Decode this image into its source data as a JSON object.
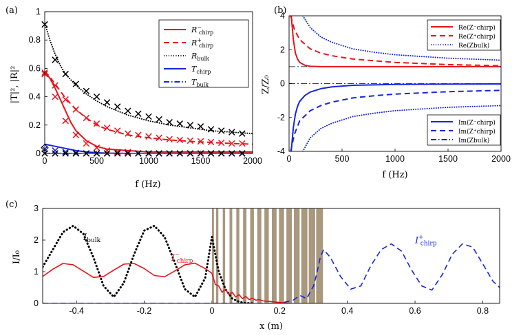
{
  "chart_data": [
    {
      "type": "line",
      "panel_label": "(a)",
      "xlabel": "f (Hz)",
      "ylabel": "|T|², |R|²",
      "xlim": [
        0,
        2000
      ],
      "ylim": [
        0,
        1
      ],
      "xticks": [
        "0",
        "500",
        "1000",
        "1500",
        "2000"
      ],
      "yticks": [
        "0",
        "0.2",
        "0.4",
        "0.6",
        "0.8",
        "1"
      ],
      "legend_position": "top-right",
      "series": [
        {
          "name": "R⁻chirp",
          "color": "#e8141b",
          "style": "solid",
          "x": [
            0,
            50,
            100,
            150,
            200,
            250,
            300,
            400,
            500,
            600,
            800,
            1000,
            1200,
            1400,
            1600,
            1800,
            2000
          ],
          "y": [
            0.58,
            0.53,
            0.46,
            0.38,
            0.3,
            0.22,
            0.16,
            0.09,
            0.05,
            0.03,
            0.02,
            0.01,
            0.01,
            0.01,
            0.01,
            0.01,
            0.01
          ]
        },
        {
          "name": "R⁺chirp",
          "color": "#e8141b",
          "style": "dashed",
          "x": [
            0,
            50,
            100,
            150,
            200,
            250,
            300,
            400,
            500,
            600,
            800,
            1000,
            1200,
            1400,
            1600,
            1800,
            2000
          ],
          "y": [
            0.58,
            0.54,
            0.49,
            0.44,
            0.39,
            0.35,
            0.31,
            0.25,
            0.2,
            0.17,
            0.13,
            0.11,
            0.095,
            0.085,
            0.077,
            0.07,
            0.065
          ]
        },
        {
          "name": "Rbulk",
          "color": "#000000",
          "style": "dotted",
          "x": [
            0,
            50,
            100,
            150,
            200,
            250,
            300,
            400,
            500,
            600,
            800,
            1000,
            1200,
            1400,
            1600,
            1800,
            2000
          ],
          "y": [
            0.92,
            0.8,
            0.7,
            0.62,
            0.56,
            0.52,
            0.48,
            0.42,
            0.37,
            0.33,
            0.27,
            0.23,
            0.2,
            0.18,
            0.16,
            0.15,
            0.14
          ]
        },
        {
          "name": "Tchirp",
          "color": "#1524e0",
          "style": "solid",
          "x": [
            0,
            100,
            200,
            300,
            400,
            500,
            600,
            800,
            1000,
            2000
          ],
          "y": [
            0.065,
            0.05,
            0.035,
            0.02,
            0.01,
            0.005,
            0.002,
            0.0,
            0.0,
            0.0
          ]
        },
        {
          "name": "Tbulk",
          "color": "#1524e0",
          "style": "dashdot",
          "x": [
            0,
            2000
          ],
          "y": [
            0.0,
            0.0
          ]
        }
      ],
      "markers": [
        {
          "series": "Rbulk",
          "symbol": "x",
          "color": "#000000",
          "x": [
            0,
            100,
            200,
            300,
            400,
            500,
            600,
            700,
            800,
            900,
            1000,
            1100,
            1200,
            1300,
            1400,
            1500,
            1600,
            1700,
            1800,
            1900
          ],
          "y": [
            0.91,
            0.66,
            0.56,
            0.49,
            0.44,
            0.4,
            0.36,
            0.33,
            0.3,
            0.28,
            0.26,
            0.24,
            0.22,
            0.21,
            0.2,
            0.19,
            0.17,
            0.16,
            0.15,
            0.14
          ]
        },
        {
          "series": "R⁻chirp",
          "symbol": "x",
          "color": "#e8141b",
          "x": [
            0,
            100,
            200,
            300,
            400,
            500,
            600,
            700,
            800
          ],
          "y": [
            0.57,
            0.4,
            0.23,
            0.13,
            0.07,
            0.04,
            0.02,
            0.01,
            0.01
          ]
        },
        {
          "series": "R⁺chirp",
          "symbol": "x",
          "color": "#e8141b",
          "x": [
            0,
            100,
            200,
            300,
            400,
            500,
            600,
            700,
            800,
            900,
            1000,
            1100,
            1200,
            1300,
            1400,
            1500,
            1600,
            1700,
            1800,
            1900
          ],
          "y": [
            0.56,
            0.48,
            0.38,
            0.31,
            0.25,
            0.21,
            0.18,
            0.16,
            0.14,
            0.13,
            0.12,
            0.11,
            0.1,
            0.095,
            0.09,
            0.085,
            0.08,
            0.075,
            0.07,
            0.07
          ]
        },
        {
          "series": "Tchirp",
          "symbol": "x",
          "color": "#1524e0",
          "x": [
            0,
            100,
            200,
            300,
            400,
            500,
            600,
            700,
            800,
            900,
            1000,
            1100,
            1200,
            1300,
            1400,
            1500,
            1600,
            1700,
            1800,
            1900
          ],
          "y": [
            0.03,
            0.02,
            0.01,
            0.005,
            0.0,
            0.0,
            0.0,
            0.0,
            0.0,
            0.0,
            0.0,
            0.0,
            0.0,
            0.0,
            0.0,
            0.0,
            0.0,
            0.0,
            0.0,
            0.0
          ]
        },
        {
          "series": "Tbulk",
          "symbol": "x",
          "color": "#000000",
          "x": [
            0,
            100,
            200,
            300,
            400,
            500,
            600,
            700,
            800,
            900,
            1000,
            1100,
            1200,
            1300,
            1400,
            1500,
            1600,
            1700,
            1800,
            1900
          ],
          "y": [
            0.0,
            0.0,
            0.0,
            0.0,
            0.0,
            0.0,
            0.0,
            0.0,
            0.0,
            0.0,
            0.0,
            0.0,
            0.0,
            0.0,
            0.0,
            0.0,
            0.0,
            0.0,
            0.0,
            0.0
          ]
        },
        {
          "series": "Rbulk",
          "symbol": "o",
          "color": "#000000",
          "x": [
            0
          ],
          "y": [
            0.04
          ]
        }
      ],
      "legend": [
        {
          "base": "R",
          "sup": "−",
          "sub": "chirp",
          "color": "#e8141b",
          "style": "solid"
        },
        {
          "base": "R",
          "sup": "+",
          "sub": "chirp",
          "color": "#e8141b",
          "style": "dashed"
        },
        {
          "base": "R",
          "sup": "",
          "sub": "bulk",
          "color": "#000000",
          "style": "dotted"
        },
        {
          "base": "T",
          "sup": "",
          "sub": "chirp",
          "color": "#1524e0",
          "style": "solid"
        },
        {
          "base": "T",
          "sup": "",
          "sub": "bulk",
          "color": "#1524e0",
          "style": "dashdot"
        }
      ]
    },
    {
      "type": "line",
      "panel_label": "(b)",
      "xlabel": "f (Hz)",
      "ylabel": "Z/Z₀",
      "xlim": [
        0,
        2000
      ],
      "ylim": [
        -4,
        4
      ],
      "xticks": [
        "0",
        "500",
        "1000",
        "1500",
        "2000"
      ],
      "yticks": [
        "-4",
        "-2",
        "0",
        "2",
        "4"
      ],
      "reference_lines": [
        {
          "y": 1,
          "style": "dashdot"
        },
        {
          "y": 0,
          "style": "dashdot"
        }
      ],
      "series": [
        {
          "name": "Re(Z⁻chirp)",
          "color": "#e8141b",
          "style": "solid",
          "x": [
            20,
            40,
            60,
            80,
            100,
            150,
            200,
            300,
            400,
            600,
            1000,
            2000
          ],
          "y": [
            4.0,
            2.6,
            1.8,
            1.45,
            1.25,
            1.08,
            1.02,
            1.0,
            1.0,
            1.0,
            1.0,
            1.0
          ]
        },
        {
          "name": "Re(Z⁺chirp)",
          "color": "#e8141b",
          "style": "dashed",
          "x": [
            15,
            50,
            100,
            200,
            300,
            400,
            600,
            800,
            1000,
            1500,
            2000
          ],
          "y": [
            4.0,
            3.2,
            2.6,
            2.05,
            1.8,
            1.65,
            1.45,
            1.35,
            1.25,
            1.12,
            1.05
          ]
        },
        {
          "name": "Re(Zbulk)",
          "color": "#1524e0",
          "style": "dotted",
          "x": [
            130,
            200,
            300,
            400,
            600,
            800,
            1000,
            1500,
            2000
          ],
          "y": [
            4.0,
            3.3,
            2.75,
            2.45,
            2.05,
            1.85,
            1.7,
            1.5,
            1.38
          ]
        },
        {
          "name": "Im(Z⁻chirp)",
          "color": "#1524e0",
          "style": "solid",
          "x": [
            20,
            40,
            60,
            80,
            100,
            150,
            200,
            300,
            400,
            600,
            1000,
            2000
          ],
          "y": [
            -4.0,
            -2.6,
            -1.8,
            -1.35,
            -1.05,
            -0.7,
            -0.5,
            -0.3,
            -0.2,
            -0.1,
            -0.05,
            -0.02
          ]
        },
        {
          "name": "Im(Z⁺chirp)",
          "color": "#1524e0",
          "style": "dashed",
          "x": [
            15,
            50,
            100,
            200,
            300,
            400,
            600,
            800,
            1000,
            1500,
            2000
          ],
          "y": [
            -4.0,
            -3.0,
            -2.2,
            -1.6,
            -1.3,
            -1.1,
            -0.85,
            -0.72,
            -0.62,
            -0.48,
            -0.4
          ]
        },
        {
          "name": "Im(Zbulk)",
          "color": "#1524e0",
          "style": "dotted",
          "x": [
            130,
            200,
            300,
            400,
            600,
            800,
            1000,
            1500,
            2000
          ],
          "y": [
            -4.0,
            -3.2,
            -2.65,
            -2.35,
            -1.95,
            -1.75,
            -1.6,
            -1.4,
            -1.3
          ]
        }
      ],
      "legend_top": [
        {
          "text": "Re(Z⁻chirp)",
          "color": "#e8141b",
          "style": "solid"
        },
        {
          "text": "Re(Z⁺chirp)",
          "color": "#e8141b",
          "style": "dashed"
        },
        {
          "text": "Re(Zbulk)",
          "color": "#1524e0",
          "style": "dotted"
        }
      ],
      "legend_bottom": [
        {
          "text": "Im(Z⁻chirp)",
          "color": "#1524e0",
          "style": "solid"
        },
        {
          "text": "Im(Z⁺chirp)",
          "color": "#1524e0",
          "style": "dashed"
        },
        {
          "text": "Im(Zbulk)",
          "color": "#1524e0",
          "style": "dashdot"
        }
      ]
    },
    {
      "type": "line",
      "panel_label": "(c)",
      "xlabel": "x (m)",
      "ylabel": "I/I₀",
      "xlim": [
        -0.5,
        0.85
      ],
      "ylim": [
        0,
        3
      ],
      "xticks": [
        "-0.4",
        "-0.2",
        "0",
        "0.2",
        "0.4",
        "0.6",
        "0.8"
      ],
      "yticks": [
        "0",
        "1",
        "2",
        "3"
      ],
      "slab_color": "#a8987e",
      "slabs": [
        [
          0.0,
          0.006
        ],
        [
          0.012,
          0.019
        ],
        [
          0.032,
          0.039
        ],
        [
          0.052,
          0.06
        ],
        [
          0.072,
          0.081
        ],
        [
          0.092,
          0.102
        ],
        [
          0.113,
          0.124
        ],
        [
          0.134,
          0.146
        ],
        [
          0.155,
          0.168
        ],
        [
          0.177,
          0.191
        ],
        [
          0.198,
          0.213
        ],
        [
          0.22,
          0.236
        ],
        [
          0.242,
          0.259
        ],
        [
          0.264,
          0.282
        ],
        [
          0.286,
          0.305
        ],
        [
          0.308,
          0.328
        ]
      ],
      "series": [
        {
          "name": "Ibulk",
          "color": "#000000",
          "style": "dotted",
          "width": 3,
          "x": [
            -0.5,
            -0.47,
            -0.44,
            -0.41,
            -0.38,
            -0.35,
            -0.32,
            -0.29,
            -0.26,
            -0.23,
            -0.2,
            -0.17,
            -0.14,
            -0.11,
            -0.08,
            -0.05,
            -0.02,
            0.0,
            0.02,
            0.04,
            0.06,
            0.08,
            0.1,
            0.12
          ],
          "y": [
            1.15,
            1.7,
            2.25,
            2.45,
            2.2,
            1.45,
            0.55,
            0.2,
            0.65,
            1.55,
            2.3,
            2.45,
            2.1,
            1.3,
            0.45,
            0.2,
            0.8,
            2.1,
            1.0,
            0.45,
            0.15,
            0.05,
            0.01,
            0.0
          ]
        },
        {
          "name": "I⁻chirp",
          "color": "#e8141b",
          "style": "solid",
          "width": 1.6,
          "x": [
            -0.5,
            -0.47,
            -0.44,
            -0.41,
            -0.38,
            -0.35,
            -0.32,
            -0.29,
            -0.26,
            -0.23,
            -0.2,
            -0.17,
            -0.14,
            -0.11,
            -0.08,
            -0.05,
            -0.02,
            0.0,
            0.01,
            0.02,
            0.03,
            0.04,
            0.05,
            0.06,
            0.07,
            0.08,
            0.09,
            0.1,
            0.11,
            0.12,
            0.13,
            0.14,
            0.15,
            0.17,
            0.19,
            0.21,
            0.23
          ],
          "y": [
            0.85,
            1.08,
            1.26,
            1.22,
            1.02,
            0.82,
            0.85,
            1.05,
            1.24,
            1.26,
            1.1,
            0.88,
            0.84,
            1.02,
            1.22,
            1.27,
            1.1,
            0.95,
            0.6,
            0.55,
            0.35,
            0.45,
            0.28,
            0.35,
            0.2,
            0.28,
            0.15,
            0.22,
            0.12,
            0.16,
            0.1,
            0.12,
            0.08,
            0.06,
            0.04,
            0.02,
            0.0
          ]
        },
        {
          "name": "I⁺chirp",
          "color": "#1524e0",
          "style": "dashed",
          "width": 1.6,
          "x": [
            -0.5,
            0.2,
            0.24,
            0.26,
            0.28,
            0.3,
            0.31,
            0.32,
            0.33,
            0.35,
            0.38,
            0.41,
            0.44,
            0.47,
            0.5,
            0.53,
            0.56,
            0.59,
            0.62,
            0.65,
            0.68,
            0.71,
            0.74,
            0.77,
            0.8,
            0.83,
            0.85
          ],
          "y": [
            0.0,
            0.0,
            0.1,
            0.25,
            0.15,
            0.55,
            0.95,
            1.45,
            1.7,
            1.45,
            0.85,
            0.45,
            0.55,
            1.2,
            1.7,
            1.88,
            1.65,
            1.05,
            0.55,
            0.42,
            0.9,
            1.55,
            1.88,
            1.78,
            1.25,
            0.7,
            0.5
          ]
        }
      ],
      "annotations": [
        {
          "base": "I",
          "sup": "",
          "sub": "bulk",
          "color": "#000000",
          "x": -0.38,
          "y": 2.0
        },
        {
          "base": "I",
          "sup": "−",
          "sub": "chirp",
          "color": "#e8141b",
          "x": -0.12,
          "y": 1.35
        },
        {
          "base": "I",
          "sup": "+",
          "sub": "chirp",
          "color": "#1524e0",
          "x": 0.6,
          "y": 1.9
        }
      ]
    }
  ]
}
